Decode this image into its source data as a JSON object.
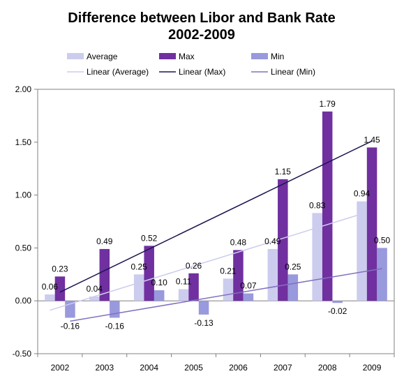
{
  "chart_data": {
    "type": "bar",
    "title": [
      "Difference between Libor and Bank Rate",
      "2002-2009"
    ],
    "categories": [
      "2002",
      "2003",
      "2004",
      "2005",
      "2006",
      "2007",
      "2008",
      "2009"
    ],
    "series": [
      {
        "name": "Average",
        "color": "#ccccee",
        "values": [
          0.06,
          0.04,
          0.25,
          0.11,
          0.21,
          0.49,
          0.83,
          0.94
        ],
        "labels": [
          "0.06",
          "0.04",
          "0.25",
          "0.11",
          "0.21",
          "0.49",
          "0.83",
          "0.94"
        ]
      },
      {
        "name": "Max",
        "color": "#7030a0",
        "values": [
          0.23,
          0.49,
          0.52,
          0.26,
          0.48,
          1.15,
          1.79,
          1.45
        ],
        "labels": [
          "0.23",
          "0.49",
          "0.52",
          "0.26",
          "0.48",
          "1.15",
          "1.79",
          "1.45"
        ]
      },
      {
        "name": "Min",
        "color": "#9999dd",
        "values": [
          -0.16,
          -0.16,
          0.1,
          -0.13,
          0.07,
          0.25,
          -0.02,
          0.5
        ],
        "labels": [
          "-0.16",
          "-0.16",
          "0.10",
          "-0.13",
          "0.07",
          "0.25",
          "-0.02",
          "0.50"
        ]
      }
    ],
    "trendlines": [
      {
        "name": "Linear (Average)",
        "series": "Average",
        "color": "#ccccee"
      },
      {
        "name": "Linear (Max)",
        "series": "Max",
        "color": "#1a1550"
      },
      {
        "name": "Linear (Min)",
        "series": "Min",
        "color": "#8070c0"
      }
    ],
    "ylim": [
      -0.5,
      2.0
    ],
    "yticks": [
      "-0.50",
      "0.00",
      "0.50",
      "1.00",
      "1.50",
      "2.00"
    ],
    "ytick_values": [
      -0.5,
      0,
      0.5,
      1.0,
      1.5,
      2.0
    ],
    "xlabel": "",
    "ylabel": "",
    "grid": false,
    "legend_position": "top"
  }
}
